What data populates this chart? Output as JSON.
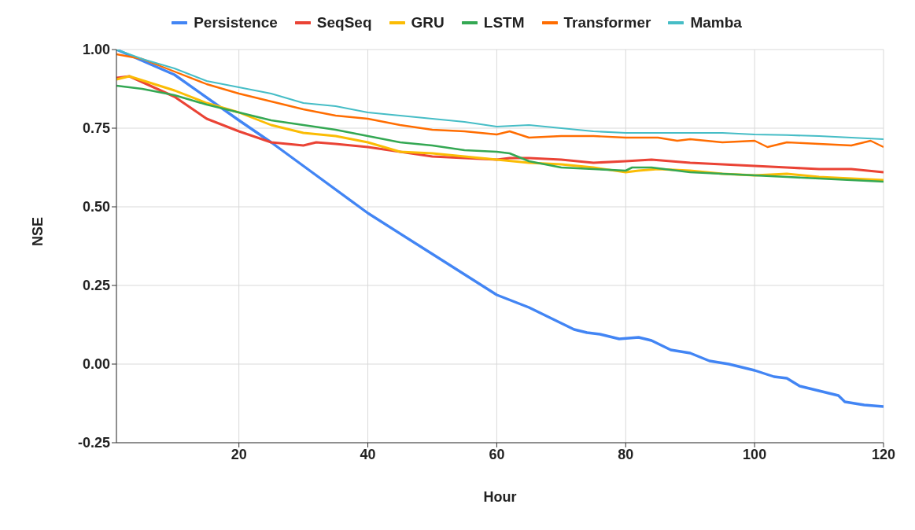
{
  "chart_data": {
    "type": "line",
    "xlabel": "Hour",
    "ylabel": "NSE",
    "xlim": [
      1,
      120
    ],
    "xticks": [
      20,
      40,
      60,
      80,
      100,
      120
    ],
    "ylim": [
      -0.25,
      1
    ],
    "yticks": [
      {
        "value": -0.25,
        "label": "-0.25"
      },
      {
        "value": 0,
        "label": "0.00"
      },
      {
        "value": 0.25,
        "label": "0.25"
      },
      {
        "value": 0.5,
        "label": "0.50"
      },
      {
        "value": 0.75,
        "label": "0.75"
      },
      {
        "value": 1,
        "label": "1.00"
      }
    ],
    "grid": true,
    "legend": "top",
    "marker": "none",
    "line_style": "solid",
    "series": [
      {
        "name": "Persistence",
        "color": "#4285f4",
        "x": [
          1,
          10,
          20,
          25,
          30,
          40,
          50,
          60,
          65,
          70,
          72,
          74,
          76,
          79,
          82,
          84,
          87,
          90,
          93,
          96,
          100,
          103,
          105,
          107,
          110,
          113,
          114,
          117,
          120
        ],
        "values": [
          1.0,
          0.92,
          0.775,
          0.705,
          0.63,
          0.48,
          0.35,
          0.22,
          0.18,
          0.13,
          0.11,
          0.1,
          0.095,
          0.08,
          0.085,
          0.075,
          0.045,
          0.035,
          0.01,
          0.0,
          -0.02,
          -0.04,
          -0.045,
          -0.07,
          -0.085,
          -0.1,
          -0.12,
          -0.13,
          -0.135
        ]
      },
      {
        "name": "SeqSeq",
        "color": "#ea4335",
        "x": [
          1,
          3,
          10,
          15,
          20,
          25,
          30,
          32,
          35,
          40,
          45,
          50,
          55,
          60,
          62,
          65,
          70,
          75,
          80,
          84,
          90,
          95,
          100,
          105,
          110,
          115,
          120
        ],
        "values": [
          0.91,
          0.915,
          0.85,
          0.78,
          0.74,
          0.705,
          0.695,
          0.705,
          0.7,
          0.69,
          0.675,
          0.66,
          0.655,
          0.65,
          0.655,
          0.655,
          0.65,
          0.64,
          0.645,
          0.65,
          0.64,
          0.635,
          0.63,
          0.625,
          0.62,
          0.62,
          0.61
        ]
      },
      {
        "name": "GRU",
        "color": "#fbbc04",
        "x": [
          1,
          3,
          10,
          15,
          20,
          25,
          30,
          35,
          40,
          45,
          50,
          55,
          60,
          65,
          70,
          75,
          80,
          82,
          85,
          90,
          95,
          100,
          105,
          110,
          115,
          120
        ],
        "values": [
          0.905,
          0.915,
          0.87,
          0.83,
          0.8,
          0.76,
          0.735,
          0.725,
          0.705,
          0.675,
          0.67,
          0.66,
          0.65,
          0.64,
          0.635,
          0.625,
          0.61,
          0.615,
          0.62,
          0.615,
          0.605,
          0.6,
          0.605,
          0.595,
          0.59,
          0.585
        ]
      },
      {
        "name": "LSTM",
        "color": "#34a853",
        "x": [
          1,
          5,
          10,
          15,
          20,
          25,
          30,
          35,
          40,
          45,
          50,
          55,
          60,
          62,
          65,
          70,
          75,
          80,
          81,
          84,
          90,
          95,
          100,
          105,
          110,
          115,
          120
        ],
        "values": [
          0.885,
          0.875,
          0.855,
          0.825,
          0.8,
          0.775,
          0.76,
          0.745,
          0.725,
          0.705,
          0.695,
          0.68,
          0.675,
          0.67,
          0.645,
          0.625,
          0.62,
          0.615,
          0.625,
          0.625,
          0.61,
          0.605,
          0.6,
          0.595,
          0.59,
          0.585,
          0.58
        ]
      },
      {
        "name": "Transformer",
        "color": "#ff6d01",
        "x": [
          1,
          5,
          10,
          15,
          20,
          25,
          30,
          35,
          40,
          45,
          50,
          55,
          60,
          62,
          65,
          70,
          75,
          80,
          85,
          88,
          90,
          95,
          100,
          102,
          105,
          110,
          115,
          118,
          120
        ],
        "values": [
          0.985,
          0.97,
          0.93,
          0.89,
          0.86,
          0.835,
          0.81,
          0.79,
          0.78,
          0.76,
          0.745,
          0.74,
          0.73,
          0.74,
          0.72,
          0.725,
          0.725,
          0.72,
          0.72,
          0.71,
          0.715,
          0.705,
          0.71,
          0.69,
          0.705,
          0.7,
          0.695,
          0.71,
          0.69
        ]
      },
      {
        "name": "Mamba",
        "color": "#46bdc6",
        "x": [
          1,
          5,
          10,
          15,
          20,
          25,
          30,
          35,
          40,
          45,
          50,
          55,
          60,
          65,
          70,
          75,
          80,
          85,
          90,
          95,
          100,
          105,
          110,
          115,
          120
        ],
        "values": [
          1.0,
          0.97,
          0.94,
          0.9,
          0.88,
          0.86,
          0.83,
          0.82,
          0.8,
          0.79,
          0.78,
          0.77,
          0.755,
          0.76,
          0.75,
          0.74,
          0.735,
          0.735,
          0.735,
          0.735,
          0.73,
          0.728,
          0.725,
          0.72,
          0.715
        ]
      }
    ]
  }
}
